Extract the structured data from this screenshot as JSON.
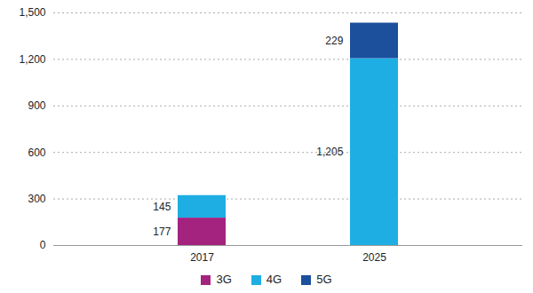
{
  "chart_data": {
    "type": "bar",
    "stacked": true,
    "data_labels": true,
    "grid": true,
    "legend": "bottom",
    "categories": [
      "2017",
      "2025"
    ],
    "series": [
      {
        "name": "3G",
        "color": "#a3237f",
        "values": [
          177,
          null
        ]
      },
      {
        "name": "4G",
        "color": "#1eaee4",
        "values": [
          145,
          1205
        ],
        "value_labels": [
          "145",
          "1,205"
        ]
      },
      {
        "name": "5G",
        "color": "#1c4f9c",
        "values": [
          null,
          229
        ]
      }
    ],
    "ylim": [
      0,
      1500
    ],
    "yticks": [
      0,
      300,
      600,
      900,
      {
        "value": 1200,
        "label": "1,200"
      },
      {
        "value": 1500,
        "label": "1,500"
      }
    ]
  }
}
